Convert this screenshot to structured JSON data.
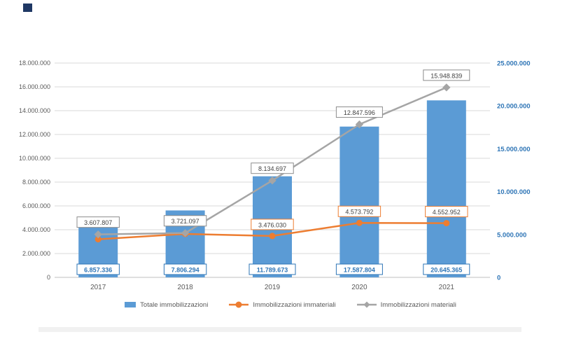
{
  "page": {
    "background": "#ffffff"
  },
  "artifacts": {
    "corner_square_color": "#1F3864",
    "bottom_band_color": "#ededed"
  },
  "chart_data": {
    "type": "combo",
    "subtypes": [
      "bar",
      "line",
      "line"
    ],
    "title": "",
    "categories": [
      "2017",
      "2018",
      "2019",
      "2020",
      "2021"
    ],
    "series": [
      {
        "name": "Totale immobilizzazioni",
        "type": "bar",
        "axis": "right",
        "color": "#5B9BD5",
        "values": [
          6857336,
          7806294,
          11789673,
          17587804,
          20645365
        ],
        "labels": [
          "6.857.336",
          "7.806.294",
          "11.789.673",
          "17.587.804",
          "20.645.365"
        ],
        "label_text_color": "#2E75B6",
        "label_border_color": "#2E75B6"
      },
      {
        "name": "Immobilizzazioni immateriali",
        "type": "line",
        "marker": "circle",
        "axis": "left",
        "color": "#ED7D31",
        "values": [
          3200000,
          3650000,
          3476030,
          4573792,
          4552952
        ],
        "labels": [
          null,
          null,
          "3.476.030",
          "4.573.792",
          "4.552.952"
        ],
        "label_text_color": "#404040",
        "label_border_color": "#ED7D31"
      },
      {
        "name": "Immobilizzazioni materiali",
        "type": "line",
        "marker": "diamond",
        "axis": "left",
        "color": "#A5A5A5",
        "values": [
          3607807,
          3721097,
          8134697,
          12847596,
          15948839
        ],
        "labels": [
          "3.607.807",
          "3.721.097",
          "8.134.697",
          "12.847.596",
          "15.948.839"
        ],
        "label_text_color": "#404040",
        "label_border_color": "#8C8C8C"
      }
    ],
    "left_axis": {
      "min": 0,
      "max": 18000000,
      "step": 2000000,
      "tick_labels": [
        "0",
        "2.000.000",
        "4.000.000",
        "6.000.000",
        "8.000.000",
        "10.000.000",
        "12.000.000",
        "14.000.000",
        "16.000.000",
        "18.000.000"
      ],
      "color": "#595959"
    },
    "right_axis": {
      "min": 0,
      "max": 25000000,
      "step": 5000000,
      "tick_labels": [
        "0",
        "5.000.000",
        "10.000.000",
        "15.000.000",
        "20.000.000",
        "25.000.000"
      ],
      "color": "#2E75B6"
    },
    "grid": true,
    "legend_position": "bottom"
  }
}
